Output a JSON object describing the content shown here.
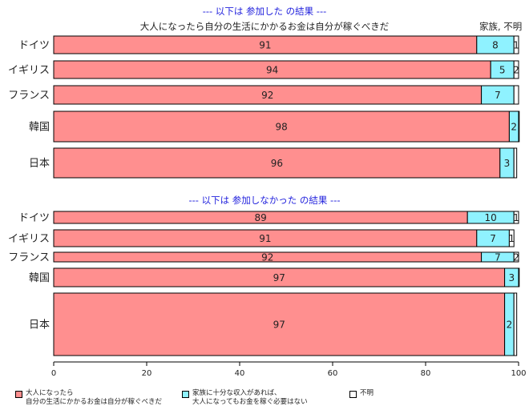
{
  "chart_data": [
    {
      "type": "bar",
      "orientation": "horizontal",
      "stacked": true,
      "title": "--- 以下は 参加した の結果 ---",
      "subtitle": "大人になったら自分の生活にかかるお金は自分が稼ぐべきだ",
      "corner_label": "家族, 不明",
      "categories": [
        "ドイツ",
        "イギリス",
        "フランス",
        "韓国",
        "日本"
      ],
      "series": [
        {
          "name": "大人になったら\n自分の生活にかかるお金は自分が稼ぐべきだ",
          "values": [
            91,
            94,
            92,
            98,
            96
          ],
          "labels": [
            "91",
            "94",
            "92",
            "98",
            "96"
          ]
        },
        {
          "name": "家族に十分な収入があれば、\n大人になってもお金を稼ぐ必要はない",
          "values": [
            8,
            5,
            7,
            2,
            3
          ],
          "labels": [
            "8",
            "5",
            "7",
            "2",
            "3"
          ]
        },
        {
          "name": "不明",
          "values": [
            1,
            2,
            1,
            0.4,
            0.6
          ],
          "labels": [
            "1",
            "2",
            "",
            "",
            ""
          ]
        }
      ],
      "xlim": [
        0,
        100
      ]
    },
    {
      "type": "bar",
      "orientation": "horizontal",
      "stacked": true,
      "title": "--- 以下は 参加しなかった の結果 ---",
      "categories": [
        "ドイツ",
        "イギリス",
        "フランス",
        "韓国",
        "日本"
      ],
      "series": [
        {
          "name": "大人になったら\n自分の生活にかかるお金は自分が稼ぐべきだ",
          "values": [
            89,
            91,
            92,
            97,
            97
          ],
          "labels": [
            "89",
            "91",
            "92",
            "97",
            "97"
          ]
        },
        {
          "name": "家族に十分な収入があれば、\n大人になってもお金を稼ぐ必要はない",
          "values": [
            10,
            7,
            7,
            3,
            2
          ],
          "labels": [
            "10",
            "7",
            "7",
            "3",
            "2"
          ]
        },
        {
          "name": "不明",
          "values": [
            1,
            1,
            2,
            0,
            0.6
          ],
          "labels": [
            "1",
            "1",
            "2",
            "",
            ""
          ]
        }
      ],
      "xlim": [
        0,
        100
      ]
    }
  ],
  "x_axis": {
    "ticks": [
      0,
      20,
      40,
      60,
      80,
      100
    ]
  },
  "colors": {
    "agree": "#ff8f8f",
    "family": "#8ff2ff",
    "unknown": "#ffffff",
    "title": "#2222dd",
    "label": "#222222"
  },
  "legend": {
    "placement": "bottom",
    "items": [
      {
        "label": "大人になったら\n自分の生活にかかるお金は自分が稼ぐべきだ",
        "color": "#ff8f8f"
      },
      {
        "label": "家族に十分な収入があれば、\n大人になってもお金を稼ぐ必要はない",
        "color": "#8ff2ff"
      },
      {
        "label": "不明",
        "color": "#ffffff"
      }
    ]
  }
}
